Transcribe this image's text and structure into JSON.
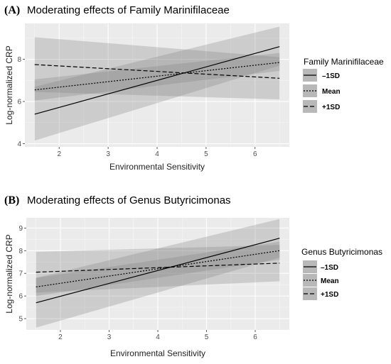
{
  "chart_data": [
    {
      "type": "line",
      "panel_tag": "(A)",
      "title": "Moderating effects of Family Marinifilaceae",
      "xlabel": "Environmental Sensitivity",
      "ylabel": "Log-normalized CRP",
      "xlim": [
        1.3,
        6.7
      ],
      "ylim": [
        3.85,
        9.7
      ],
      "xticks": [
        2,
        3,
        4,
        5,
        6
      ],
      "yticks": [
        4,
        6,
        8
      ],
      "legend_title": "Family Marinifilaceae",
      "legend_position": "right",
      "grid": true,
      "x": [
        1.5,
        6.5
      ],
      "series": [
        {
          "name": "–1SD",
          "dash": "solid",
          "values": [
            5.4,
            8.6
          ],
          "lower": [
            4.15,
            7.7
          ],
          "upper": [
            6.7,
            9.55
          ]
        },
        {
          "name": "Mean",
          "dash": "dotted",
          "values": [
            6.55,
            7.85
          ],
          "lower": [
            6.05,
            7.45
          ],
          "upper": [
            7.05,
            8.3
          ]
        },
        {
          "name": "+1SD",
          "dash": "dashed",
          "values": [
            7.75,
            7.1
          ],
          "lower": [
            6.45,
            6.1
          ],
          "upper": [
            9.05,
            8.1
          ]
        }
      ]
    },
    {
      "type": "line",
      "panel_tag": "(B)",
      "title": "Moderating effects of Genus Butyricimonas",
      "xlabel": "Environmental Sensitivity",
      "ylabel": "Log-normalized CRP",
      "xlim": [
        1.3,
        6.7
      ],
      "ylim": [
        4.5,
        9.45
      ],
      "xticks": [
        2,
        3,
        4,
        5,
        6
      ],
      "yticks": [
        5,
        6,
        7,
        8,
        9
      ],
      "legend_title": "Genus Butyricimonas",
      "legend_position": "right",
      "grid": true,
      "x": [
        1.5,
        6.5
      ],
      "series": [
        {
          "name": "–1SD",
          "dash": "solid",
          "values": [
            5.7,
            8.55
          ],
          "lower": [
            4.6,
            7.7
          ],
          "upper": [
            6.8,
            9.4
          ]
        },
        {
          "name": "Mean",
          "dash": "dotted",
          "values": [
            6.4,
            8.0
          ],
          "lower": [
            6.0,
            7.6
          ],
          "upper": [
            6.8,
            8.4
          ]
        },
        {
          "name": "+1SD",
          "dash": "dashed",
          "values": [
            7.05,
            7.45
          ],
          "lower": [
            6.15,
            6.65
          ],
          "upper": [
            7.95,
            8.25
          ]
        }
      ]
    }
  ]
}
